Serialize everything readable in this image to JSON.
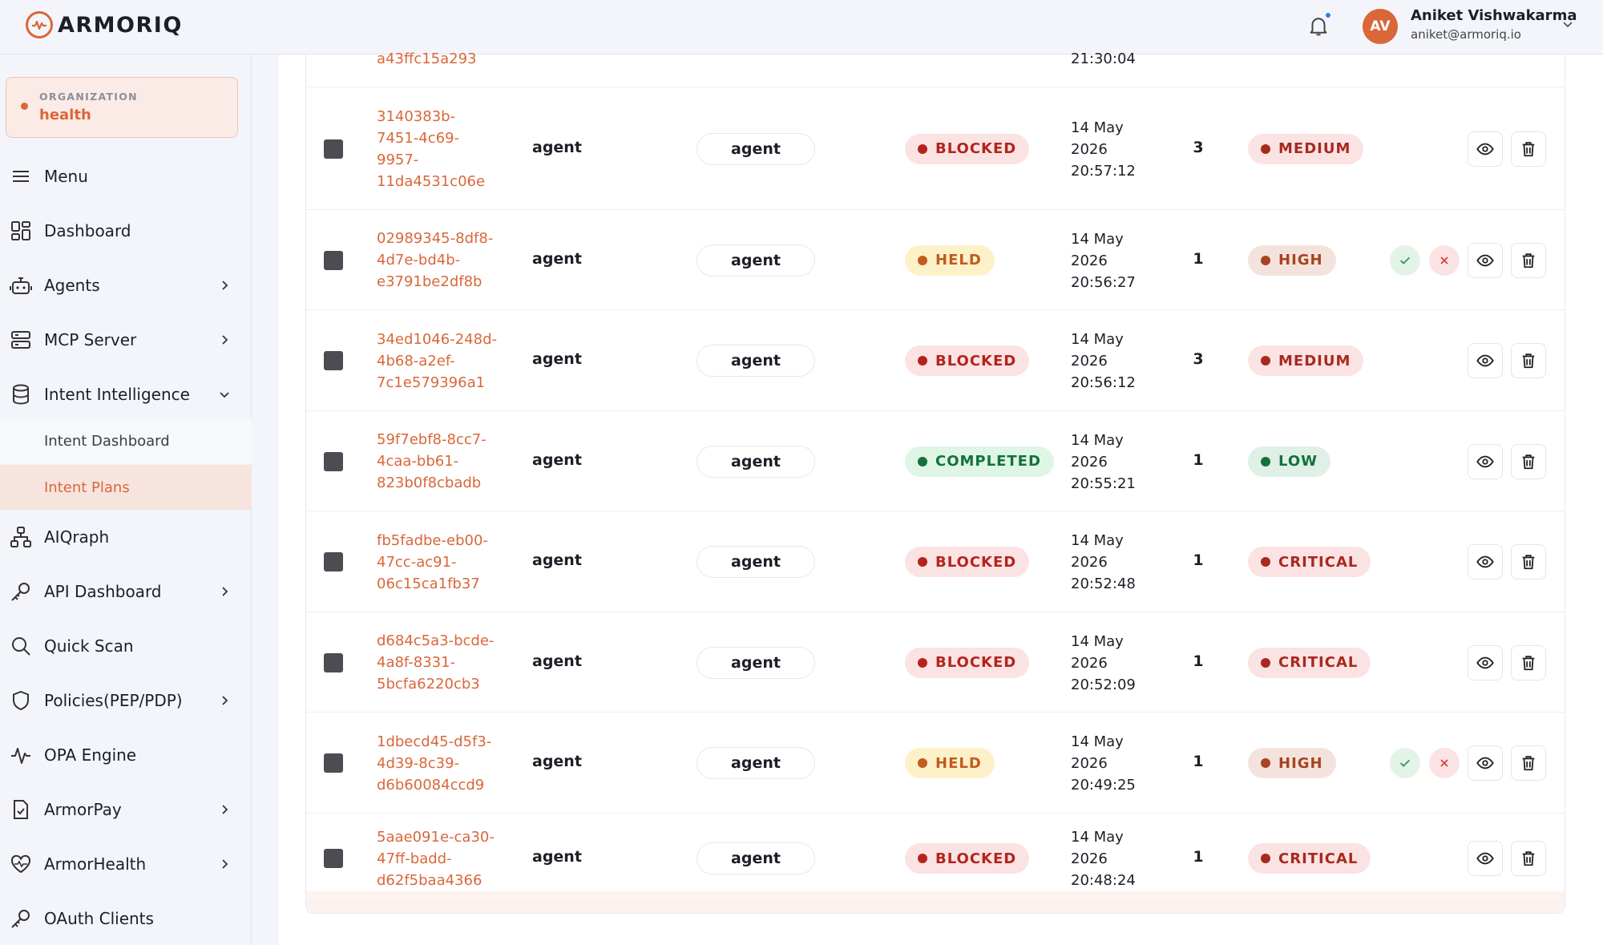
{
  "brand": {
    "name": "ARMORIQ"
  },
  "user": {
    "initials": "AV",
    "name": "Aniket Vishwakarma",
    "email": "aniket@armoriq.io"
  },
  "organization": {
    "label": "ORGANIZATION",
    "name": "health"
  },
  "sidebar": {
    "items": [
      {
        "label": "Menu",
        "icon": "menu-icon"
      },
      {
        "label": "Dashboard",
        "icon": "dashboard-icon"
      },
      {
        "label": "Agents",
        "icon": "robot-icon"
      },
      {
        "label": "MCP Server",
        "icon": "server-icon"
      },
      {
        "label": "Intent Intelligence",
        "icon": "database-icon"
      },
      {
        "label": "Intent Dashboard"
      },
      {
        "label": "Intent Plans"
      },
      {
        "label": "AIQraph",
        "icon": "graph-icon"
      },
      {
        "label": "API Dashboard",
        "icon": "key-icon"
      },
      {
        "label": "Quick Scan",
        "icon": "search-icon"
      },
      {
        "label": "Policies(PEP/PDP)",
        "icon": "shield-icon"
      },
      {
        "label": "OPA Engine",
        "icon": "activity-icon"
      },
      {
        "label": "ArmorPay",
        "icon": "invoice-icon"
      },
      {
        "label": "ArmorHealth",
        "icon": "heart-pulse-icon"
      },
      {
        "label": "OAuth Clients",
        "icon": "key-icon"
      }
    ]
  },
  "table": {
    "partial_top": {
      "id_tail": "a43ffc15a293",
      "time_tail": "21:30:04"
    },
    "rows": [
      {
        "id": [
          "3140383b-",
          "7451-4c69-",
          "9957-",
          "11da4531c06e"
        ],
        "type": "agent",
        "agent": "agent",
        "status": "BLOCKED",
        "date": [
          "14 May",
          "2026",
          "20:57:12"
        ],
        "count": "3",
        "risk": "MEDIUM",
        "review": false
      },
      {
        "id": [
          "02989345-8df8-",
          "4d7e-bd4b-",
          "e3791be2df8b"
        ],
        "type": "agent",
        "agent": "agent",
        "status": "HELD",
        "date": [
          "14 May",
          "2026",
          "20:56:27"
        ],
        "count": "1",
        "risk": "HIGH",
        "review": true
      },
      {
        "id": [
          "34ed1046-248d-",
          "4b68-a2ef-",
          "7c1e579396a1"
        ],
        "type": "agent",
        "agent": "agent",
        "status": "BLOCKED",
        "date": [
          "14 May",
          "2026",
          "20:56:12"
        ],
        "count": "3",
        "risk": "MEDIUM",
        "review": false
      },
      {
        "id": [
          "59f7ebf8-8cc7-",
          "4caa-bb61-",
          "823b0f8cbadb"
        ],
        "type": "agent",
        "agent": "agent",
        "status": "COMPLETED",
        "date": [
          "14 May",
          "2026",
          "20:55:21"
        ],
        "count": "1",
        "risk": "LOW",
        "review": false
      },
      {
        "id": [
          "fb5fadbe-eb00-",
          "47cc-ac91-",
          "06c15ca1fb37"
        ],
        "type": "agent",
        "agent": "agent",
        "status": "BLOCKED",
        "date": [
          "14 May",
          "2026",
          "20:52:48"
        ],
        "count": "1",
        "risk": "CRITICAL",
        "review": false
      },
      {
        "id": [
          "d684c5a3-bcde-",
          "4a8f-8331-",
          "5bcfa6220cb3"
        ],
        "type": "agent",
        "agent": "agent",
        "status": "BLOCKED",
        "date": [
          "14 May",
          "2026",
          "20:52:09"
        ],
        "count": "1",
        "risk": "CRITICAL",
        "review": false
      },
      {
        "id": [
          "1dbecd45-d5f3-",
          "4d39-8c39-",
          "d6b60084ccd9"
        ],
        "type": "agent",
        "agent": "agent",
        "status": "HELD",
        "date": [
          "14 May",
          "2026",
          "20:49:25"
        ],
        "count": "1",
        "risk": "HIGH",
        "review": true
      },
      {
        "id": [
          "5aae091e-ca30-",
          "47ff-badd-",
          "d62f5baa4366"
        ],
        "type": "agent",
        "agent": "agent",
        "status": "BLOCKED",
        "date": [
          "14 May",
          "2026",
          "20:48:24"
        ],
        "count": "1",
        "risk": "CRITICAL",
        "review": false
      }
    ]
  },
  "colors": {
    "accent": "#d9673a",
    "blocked": "#b4241d",
    "held": "#c45a1e",
    "completed": "#12733a"
  }
}
